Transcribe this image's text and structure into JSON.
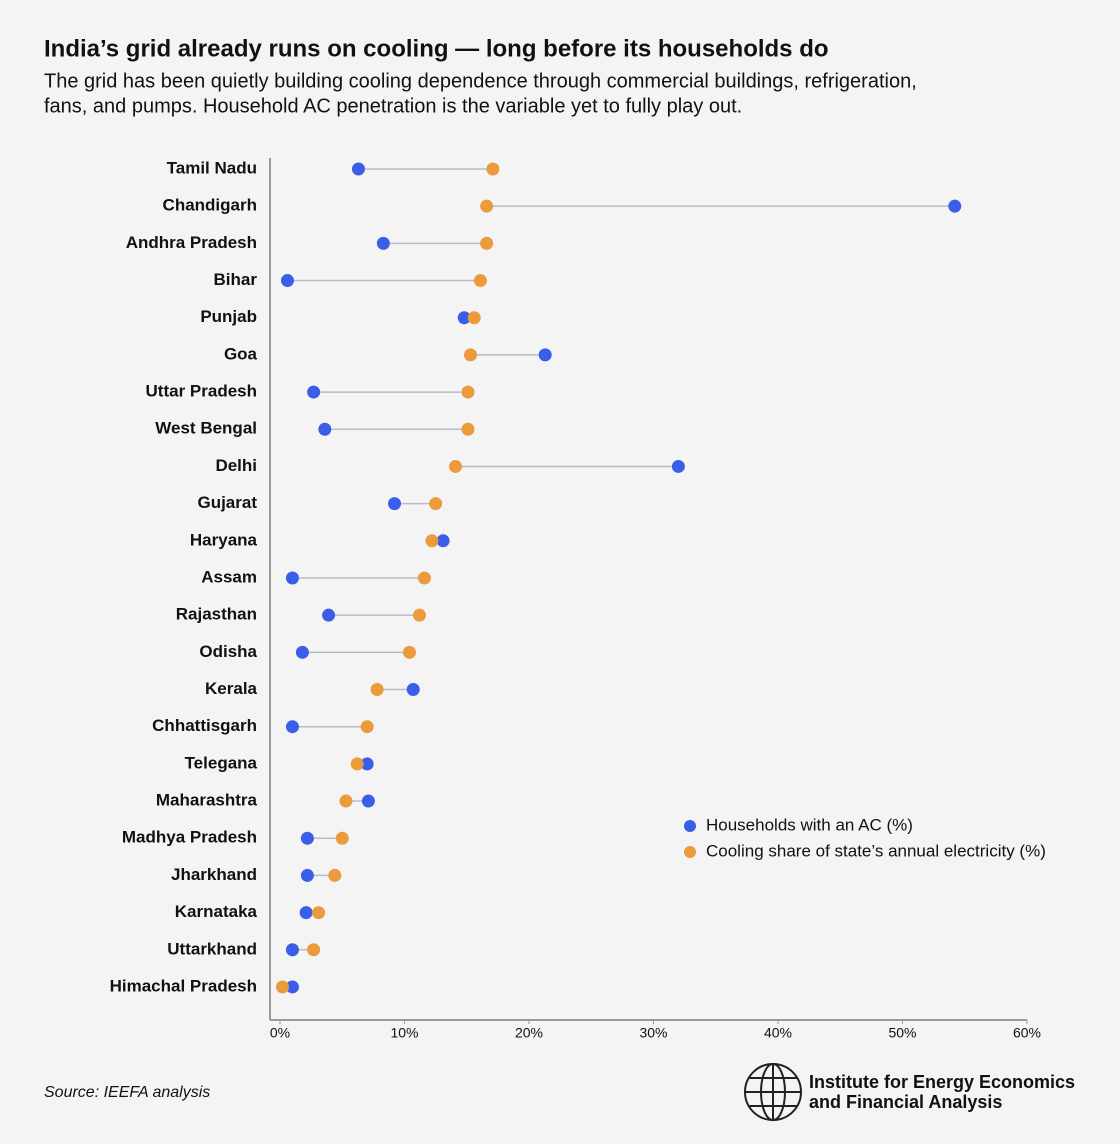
{
  "chart_data": {
    "type": "dumbbell",
    "title": "India’s grid already runs on cooling — long before its households do",
    "subtitle": [
      "The grid has been quietly building cooling dependence through commercial buildings, refrigeration,",
      "fans, and pumps. Household AC penetration is the variable yet to fully play out."
    ],
    "categories": [
      "Tamil Nadu",
      "Chandigarh",
      "Andhra Pradesh",
      "Bihar",
      "Punjab",
      "Goa",
      "Uttar Pradesh",
      "West Bengal",
      "Delhi",
      "Gujarat",
      "Haryana",
      "Assam",
      "Rajasthan",
      "Odisha",
      "Kerala",
      "Chhattisgarh",
      "Telegana",
      "Maharashtra",
      "Madhya Pradesh",
      "Jharkhand",
      "Karnataka",
      "Uttarkhand",
      "Himachal Pradesh"
    ],
    "series": [
      {
        "name": "Households with an AC (%)",
        "color": "#3a5ee8",
        "values": [
          6.3,
          54.2,
          8.3,
          0.6,
          14.8,
          21.3,
          2.7,
          3.6,
          32.0,
          9.2,
          13.1,
          1.0,
          3.9,
          1.8,
          10.7,
          1.0,
          7.0,
          7.1,
          2.2,
          2.2,
          2.1,
          1.0,
          1.0
        ]
      },
      {
        "name": "Cooling share of state’s annual electricity (%)",
        "color": "#eb9a3c",
        "values": [
          17.1,
          16.6,
          16.6,
          16.1,
          15.6,
          15.3,
          15.1,
          15.1,
          14.1,
          12.5,
          12.2,
          11.6,
          11.2,
          10.4,
          7.8,
          7.0,
          6.2,
          5.3,
          5.0,
          4.4,
          3.1,
          2.7,
          0.2
        ]
      }
    ],
    "xlim": [
      0,
      60
    ],
    "xticks": [
      {
        "value": 0,
        "label": "0%"
      },
      {
        "value": 10,
        "label": "10%"
      },
      {
        "value": 20,
        "label": "20%"
      },
      {
        "value": 30,
        "label": "30%"
      },
      {
        "value": 40,
        "label": "40%"
      },
      {
        "value": 50,
        "label": "50%"
      },
      {
        "value": 60,
        "label": "60%"
      }
    ],
    "connector_color": "#b4bccb",
    "legend": "lower-right"
  },
  "footer": {
    "source": "Source: IEEFA analysis",
    "logo": [
      "Institute for Energy Economics",
      "and Financial Analysis"
    ]
  }
}
